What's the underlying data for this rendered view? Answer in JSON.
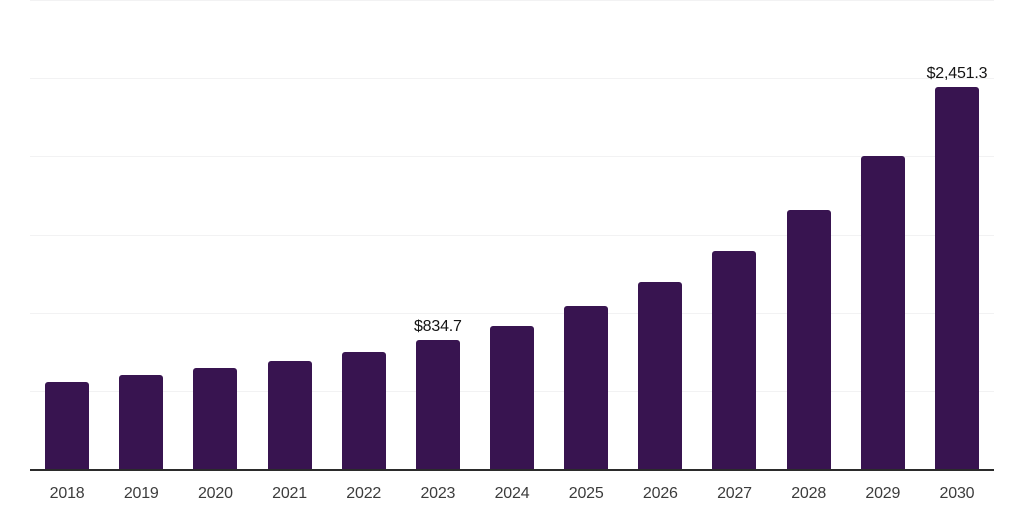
{
  "chart": {
    "colors": {
      "background": "#ffffff",
      "bar_color": "#381450",
      "gridline_color": "#f2f2f3",
      "axis_color": "#2b2b2b",
      "tick_label_color": "#3c3c3c",
      "data_label_color": "#141414"
    }
  },
  "chart_data": {
    "type": "bar",
    "title": "",
    "xlabel": "",
    "ylabel": "",
    "categories": [
      "2018",
      "2019",
      "2020",
      "2021",
      "2022",
      "2023",
      "2024",
      "2025",
      "2026",
      "2027",
      "2028",
      "2029",
      "2030"
    ],
    "values": [
      563,
      609,
      652,
      700,
      755,
      834.7,
      921,
      1049,
      1203,
      1398,
      1666,
      2009,
      2451.3
    ],
    "data_labels": {
      "2023": "$834.7",
      "2030": "$2,451.3"
    },
    "ylim": [
      0,
      3000
    ],
    "gridline_step": 500,
    "grid": "horizontal",
    "legend_position": "none",
    "y_axis_tick_labels_visible": false
  }
}
